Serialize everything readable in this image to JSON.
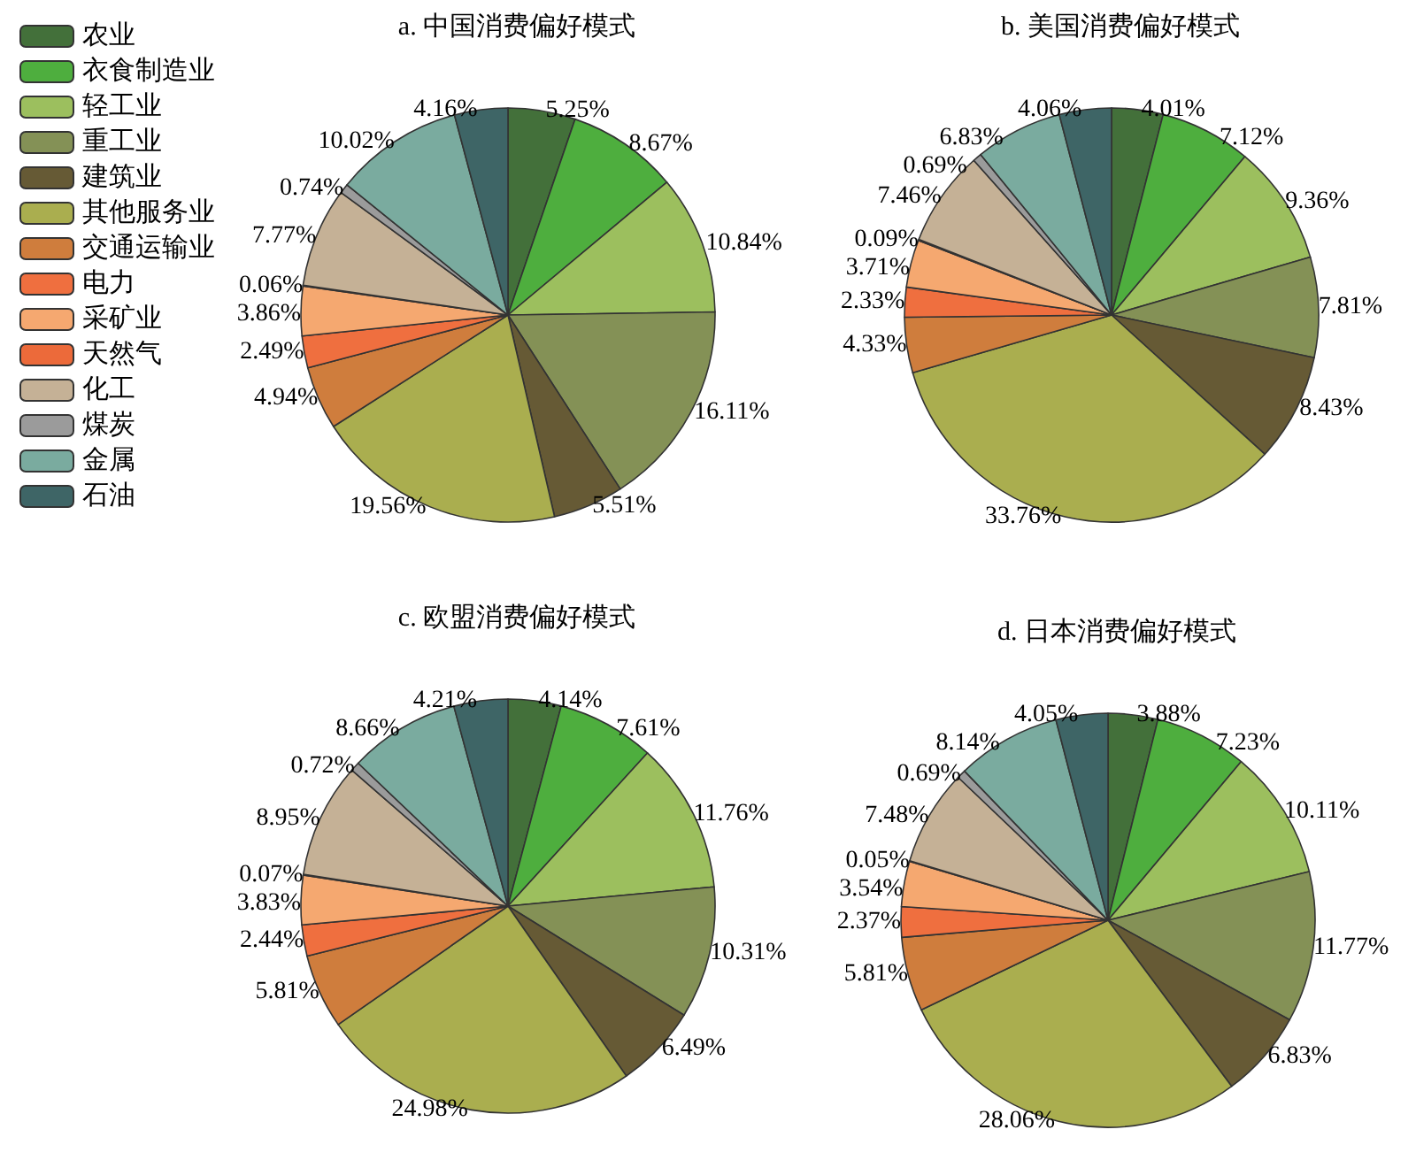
{
  "chart_data": [
    {
      "type": "pie",
      "title": "a. 中国消费偏好模式",
      "legend": "top left",
      "categories": [
        "农业",
        "衣食制造业",
        "轻工业",
        "重工业",
        "建筑业",
        "其他服务业",
        "交通运输业",
        "电力",
        "采矿业",
        "天然气",
        "化工",
        "煤炭",
        "金属",
        "石油"
      ],
      "colors": [
        "#43703a",
        "#4eae3e",
        "#9cbf5e",
        "#849156",
        "#665a35",
        "#aaae4f",
        "#cf7d3d",
        "#ef6f3f",
        "#f5a870",
        "#ec6a3a",
        "#c5b196",
        "#9b9b9b",
        "#7aab9f",
        "#3e6566"
      ],
      "values": [
        5.25,
        8.67,
        10.84,
        16.11,
        5.51,
        19.56,
        4.94,
        2.49,
        3.86,
        0.06,
        7.77,
        0.74,
        10.02,
        4.16
      ],
      "value_labels": [
        "5.25%",
        "8.67%",
        "10.84%",
        "16.11%",
        "5.51%",
        "19.56%",
        "4.94%",
        "2.49%",
        "3.86%",
        "0.06%",
        "7.77%",
        "0.74%",
        "10.02%",
        "4.16%"
      ]
    },
    {
      "type": "pie",
      "title": "b. 美国消费偏好模式",
      "categories": [
        null,
        null,
        null,
        null,
        null,
        null,
        null,
        null,
        null,
        null,
        null,
        null,
        null,
        null
      ],
      "colors": [
        "#43703a",
        "#4eae3e",
        "#9cbf5e",
        "#849156",
        "#665a35",
        "#aaae4f",
        "#cf7d3d",
        "#ef6f3f",
        "#f5a870",
        "#ec6a3a",
        "#c5b196",
        "#9b9b9b",
        "#7aab9f",
        "#3e6566"
      ],
      "values": [
        4.01,
        7.12,
        9.36,
        7.81,
        8.43,
        33.76,
        4.33,
        2.33,
        3.71,
        0.09,
        7.46,
        0.69,
        6.83,
        4.06
      ],
      "value_labels": [
        "4.01%",
        "7.12%",
        "9.36%",
        "7.81%",
        "8.43%",
        "33.76%",
        "4.33%",
        "2.33%",
        "3.71%",
        "0.09%",
        "7.46%",
        "0.69%",
        "6.83%",
        "4.06%"
      ]
    },
    {
      "type": "pie",
      "title": "c. 欧盟消费偏好模式",
      "categories": [
        null,
        null,
        null,
        null,
        null,
        null,
        null,
        null,
        null,
        null,
        null,
        null,
        null,
        null
      ],
      "colors": [
        "#43703a",
        "#4eae3e",
        "#9cbf5e",
        "#849156",
        "#665a35",
        "#aaae4f",
        "#cf7d3d",
        "#ef6f3f",
        "#f5a870",
        "#ec6a3a",
        "#c5b196",
        "#9b9b9b",
        "#7aab9f",
        "#3e6566"
      ],
      "values": [
        4.14,
        7.61,
        11.76,
        10.31,
        6.49,
        24.98,
        5.81,
        2.44,
        3.83,
        0.07,
        8.95,
        0.72,
        8.66,
        4.21
      ],
      "value_labels": [
        "4.14%",
        "7.61%",
        "11.76%",
        "10.31%",
        "6.49%",
        "24.98%",
        "5.81%",
        "2.44%",
        "3.83%",
        "0.07%",
        "8.95%",
        "0.72%",
        "8.66%",
        "4.21%"
      ]
    },
    {
      "type": "pie",
      "title": "d. 日本消费偏好模式",
      "categories": [
        null,
        null,
        null,
        null,
        null,
        null,
        null,
        null,
        null,
        null,
        null,
        null,
        null,
        null
      ],
      "colors": [
        "#43703a",
        "#4eae3e",
        "#9cbf5e",
        "#849156",
        "#665a35",
        "#aaae4f",
        "#cf7d3d",
        "#ef6f3f",
        "#f5a870",
        "#ec6a3a",
        "#c5b196",
        "#9b9b9b",
        "#7aab9f",
        "#3e6566"
      ],
      "values": [
        3.88,
        7.23,
        10.11,
        11.77,
        6.83,
        28.06,
        5.81,
        2.37,
        3.54,
        0.05,
        7.48,
        0.69,
        8.14,
        4.05
      ],
      "value_labels": [
        "3.88%",
        "7.23%",
        "10.11%",
        "11.77%",
        "6.83%",
        "28.06%",
        "5.81%",
        "2.37%",
        "3.54%",
        "0.05%",
        "7.48%",
        "0.69%",
        "8.14%",
        "4.05%"
      ]
    }
  ]
}
